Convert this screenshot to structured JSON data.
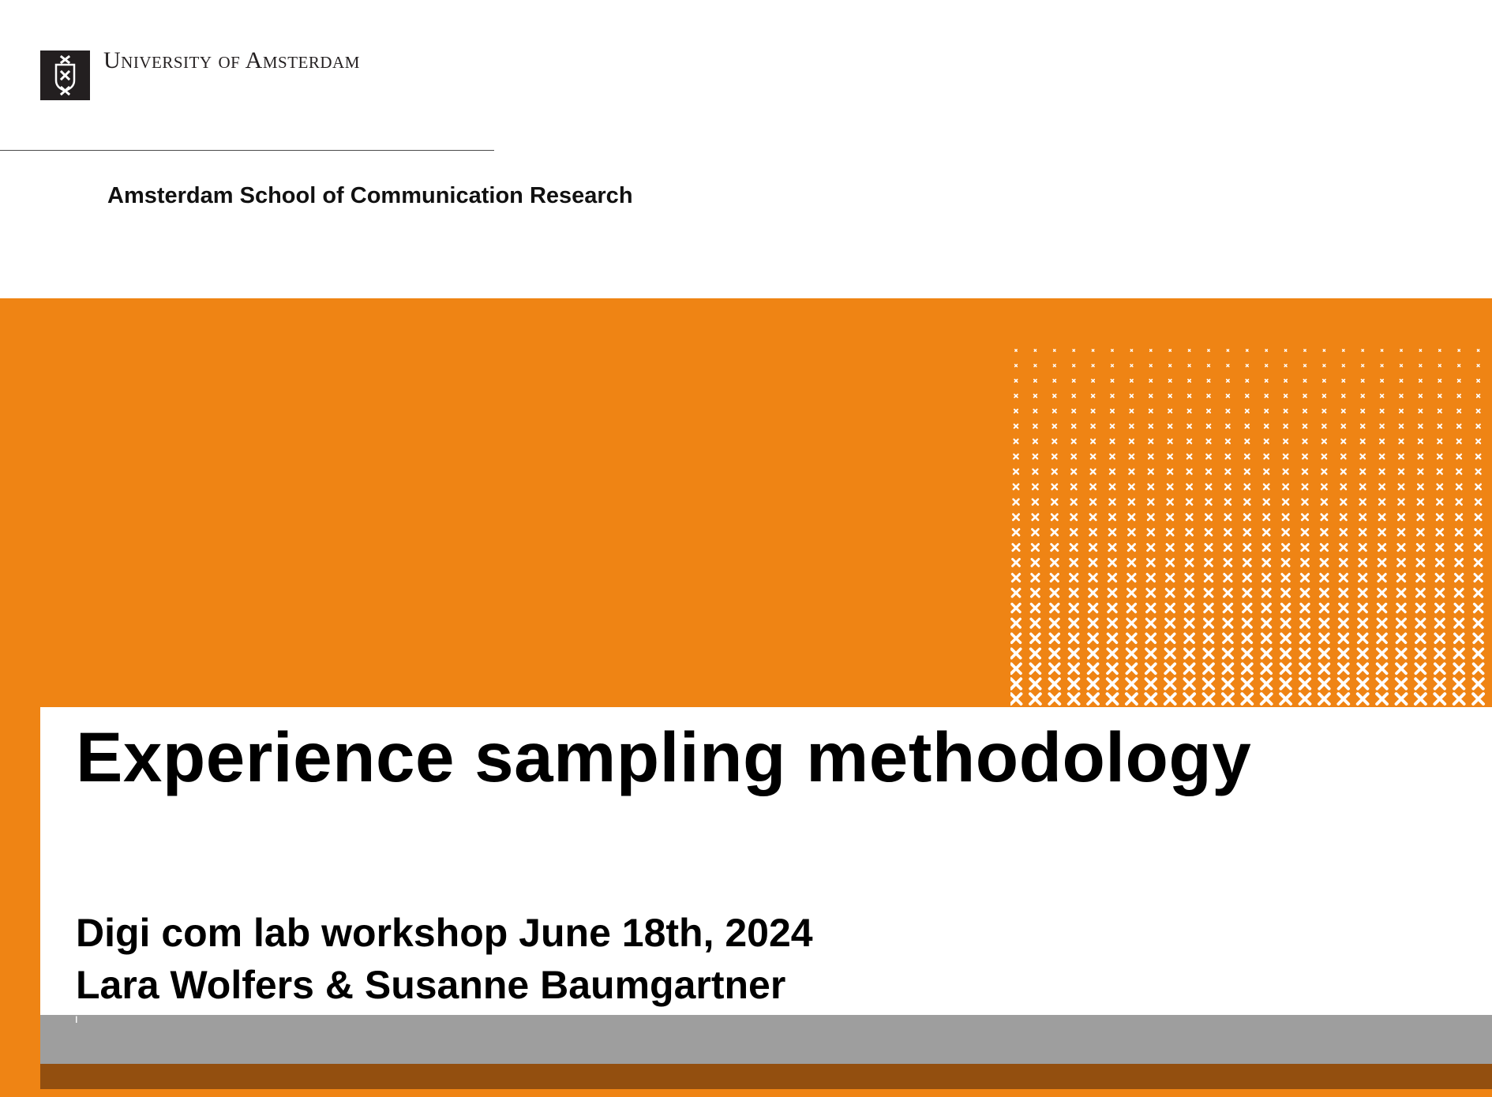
{
  "header": {
    "university_name": "University of Amsterdam",
    "school_name": "Amsterdam School of Communication Research",
    "logo_icon": "uva-crest-icon"
  },
  "slide": {
    "title": "Experience sampling methodology",
    "subtitle_line1": "Digi com lab workshop June 18th, 2024",
    "subtitle_line2": "Lara Wolfers & Susanne Baumgartner",
    "footer_marker": "i"
  },
  "colors": {
    "orange": "#ef8414",
    "grey": "#9e9e9e",
    "brown": "#934f0f",
    "logo": "#231f20"
  }
}
